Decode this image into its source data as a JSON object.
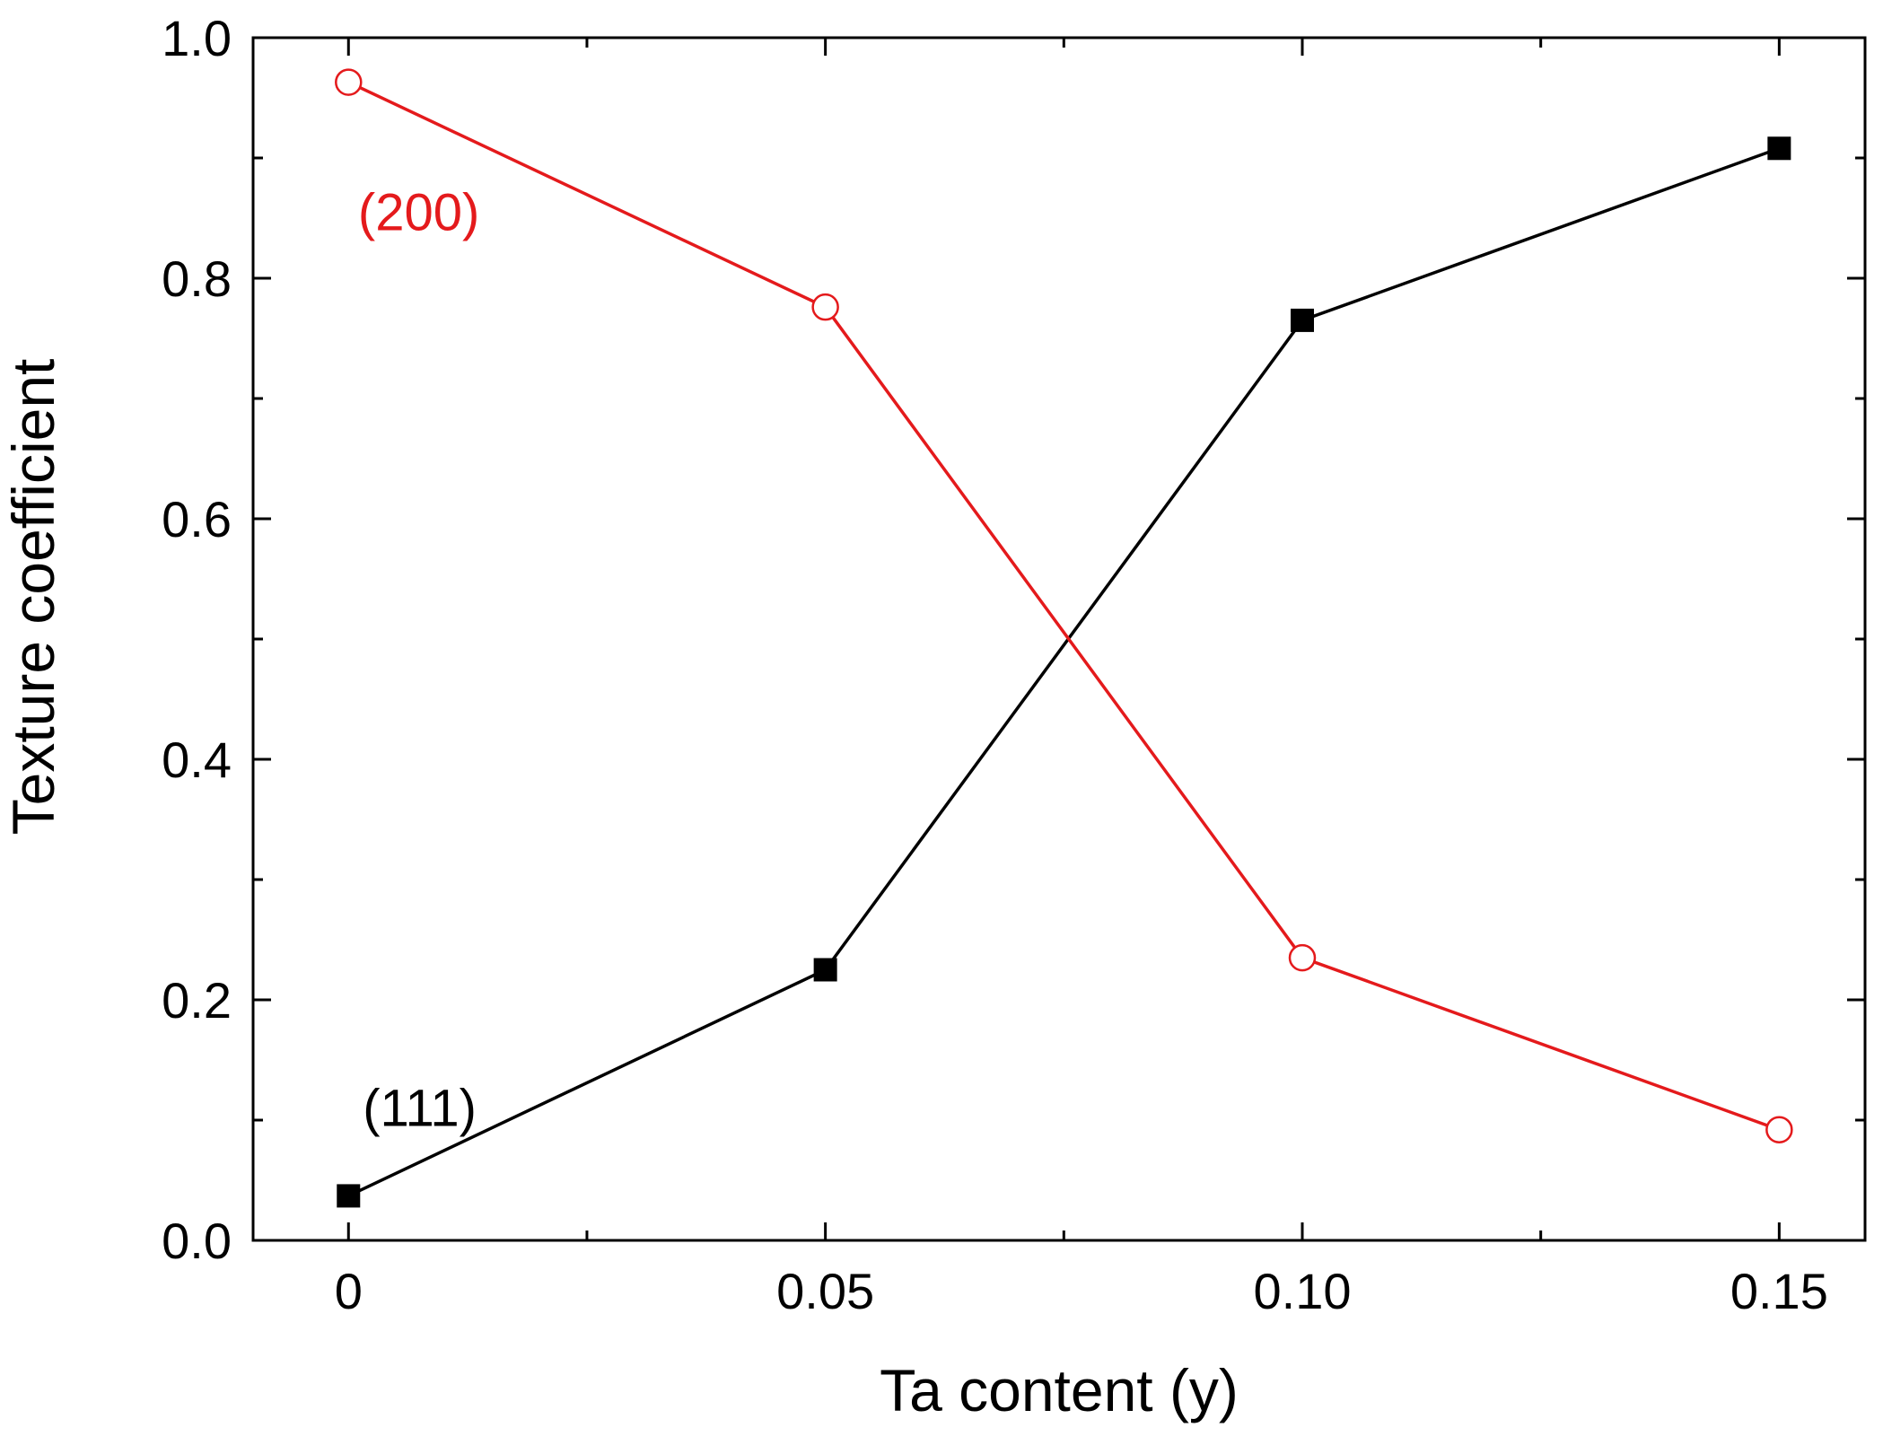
{
  "chart_data": {
    "type": "line",
    "xlabel": "Ta content (y)",
    "ylabel": "Texture coefficient",
    "xlim": [
      -0.01,
      0.159
    ],
    "ylim": [
      0,
      1.0
    ],
    "x": [
      0,
      0.05,
      0.1,
      0.15
    ],
    "xticks": [
      0,
      0.05,
      0.1,
      0.15
    ],
    "xtick_labels": [
      "0",
      "0.05",
      "0.10",
      "0.15"
    ],
    "xminor_ticks": [
      0.025,
      0.075,
      0.125
    ],
    "yticks": [
      0,
      0.2,
      0.4,
      0.6,
      0.8,
      1.0
    ],
    "ytick_labels": [
      "0.0",
      "0.2",
      "0.4",
      "0.6",
      "0.8",
      "1.0"
    ],
    "yminor_ticks": [
      0.1,
      0.3,
      0.5,
      0.7,
      0.9
    ],
    "grid": false,
    "legend": "none (series labelled inline)",
    "series": [
      {
        "name": "(111)",
        "values": [
          0.037,
          0.225,
          0.765,
          0.908
        ],
        "color": "#000000",
        "marker": "filled-square",
        "label_at": [
          0.0015,
          0.11
        ]
      },
      {
        "name": "(200)",
        "values": [
          0.963,
          0.776,
          0.235,
          0.092
        ],
        "color": "#e41a1c",
        "marker": "open-circle",
        "label_at": [
          0.001,
          0.855
        ]
      }
    ]
  }
}
